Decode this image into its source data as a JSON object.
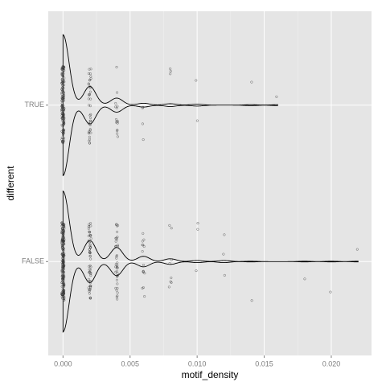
{
  "chart_data": {
    "type": "violin",
    "x_label": "motif_density",
    "y_label": "different",
    "categories": [
      "FALSE",
      "TRUE"
    ],
    "series": [
      {
        "name": "FALSE",
        "x": [
          0,
          0.002,
          0.004,
          0.006,
          0.008,
          0.01,
          0.012,
          0.014,
          0.018,
          0.02,
          0.022
        ],
        "counts": [
          200,
          60,
          40,
          15,
          8,
          3,
          3,
          1,
          1,
          1,
          1
        ]
      },
      {
        "name": "TRUE",
        "x": [
          0,
          0.002,
          0.004,
          0.006,
          0.008,
          0.01,
          0.014,
          0.016
        ],
        "counts": [
          150,
          40,
          15,
          4,
          3,
          2,
          1,
          1
        ]
      }
    ],
    "xlim": [
      -0.0011,
      0.023
    ],
    "xticks": [
      {
        "value": 0,
        "label": "0.000"
      },
      {
        "value": 0.005,
        "label": "0.005"
      },
      {
        "value": 0.01,
        "label": "0.010"
      },
      {
        "value": 0.015,
        "label": "0.015"
      },
      {
        "value": 0.02,
        "label": "0.020"
      }
    ],
    "grid": true
  }
}
